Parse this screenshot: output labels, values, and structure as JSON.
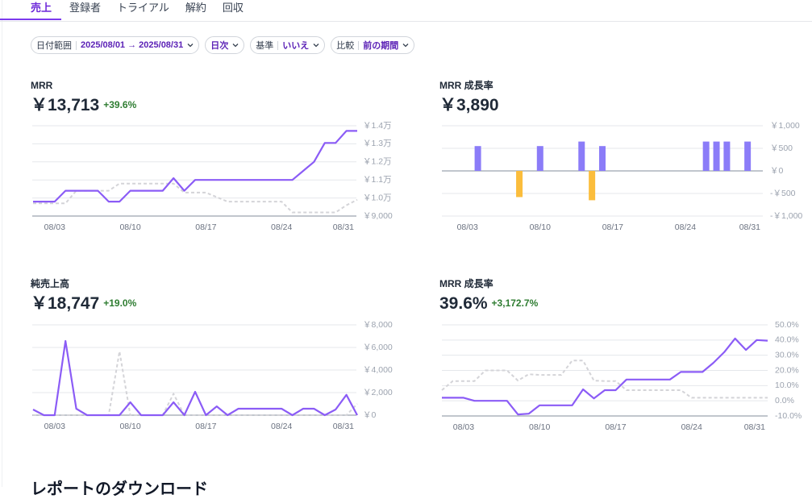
{
  "tabs": [
    "売上",
    "登録者",
    "トライアル",
    "解約",
    "回収"
  ],
  "active_tab": 0,
  "filters": [
    {
      "label": "日付範囲",
      "value": "2025/08/01 → 2025/08/31"
    },
    {
      "value": "日次"
    },
    {
      "label": "基準",
      "value": "いいえ"
    },
    {
      "label": "比較",
      "value": "前の期間"
    }
  ],
  "download_heading": "レポートのダウンロード",
  "chart_data": [
    {
      "type": "line",
      "title": "MRR",
      "value": "￥13,713",
      "change": "+39.6%",
      "categories": [
        null,
        null,
        "08/03",
        null,
        null,
        null,
        null,
        null,
        null,
        "08/10",
        null,
        null,
        null,
        null,
        null,
        null,
        "08/17",
        null,
        null,
        null,
        null,
        null,
        null,
        "08/24",
        null,
        null,
        null,
        null,
        null,
        null,
        "08/31"
      ],
      "series": [
        {
          "color": "#8b5cf6",
          "values": [
            9800,
            9800,
            9800,
            10400,
            10400,
            10400,
            10400,
            9800,
            9800,
            10400,
            10400,
            10400,
            10400,
            11100,
            10400,
            11000,
            11000,
            11000,
            11000,
            11000,
            11000,
            11000,
            11000,
            11000,
            11000,
            11500,
            12000,
            13050,
            13050,
            13713,
            13713
          ]
        },
        {
          "color": "#d4d4d8",
          "dashed": true,
          "values": [
            9700,
            9700,
            9700,
            9700,
            10400,
            10400,
            10400,
            10400,
            10800,
            10800,
            10800,
            10800,
            10800,
            10800,
            10300,
            10300,
            10300,
            10050,
            9800,
            9800,
            9800,
            9800,
            9800,
            9800,
            9200,
            9200,
            9200,
            9200,
            9200,
            9600,
            9900
          ]
        }
      ],
      "ylim": [
        9000,
        14000
      ],
      "yticks": [
        {
          "value": 9000,
          "label": "￥9,000"
        },
        {
          "value": 10000,
          "label": "￥1.0万"
        },
        {
          "value": 11000,
          "label": "￥1.1万"
        },
        {
          "value": 12000,
          "label": "￥1.2万"
        },
        {
          "value": 13000,
          "label": "￥1.3万"
        },
        {
          "value": 14000,
          "label": "￥1.4万"
        }
      ],
      "grid": true
    },
    {
      "type": "bar",
      "title": "MRR 成長率",
      "value": "￥3,890",
      "categories": [
        null,
        null,
        "08/03",
        null,
        null,
        null,
        null,
        null,
        null,
        "08/10",
        null,
        null,
        null,
        null,
        null,
        null,
        "08/17",
        null,
        null,
        null,
        null,
        null,
        null,
        "08/24",
        null,
        null,
        null,
        null,
        null,
        null,
        "08/31"
      ],
      "values": [
        0,
        0,
        0,
        550,
        0,
        0,
        0,
        -580,
        0,
        550,
        0,
        0,
        0,
        650,
        -650,
        550,
        0,
        0,
        0,
        0,
        0,
        0,
        0,
        0,
        0,
        650,
        650,
        650,
        0,
        650,
        0
      ],
      "color": "#8b7cf8",
      "negative_color": "#fbbd3c",
      "ylim": [
        -1000,
        1000
      ],
      "yticks": [
        {
          "value": -1000,
          "label": "-￥1,000"
        },
        {
          "value": -500,
          "label": "-￥500"
        },
        {
          "value": 0,
          "label": "￥0"
        },
        {
          "value": 500,
          "label": "￥500"
        },
        {
          "value": 1000,
          "label": "￥1,000"
        }
      ],
      "grid": true
    },
    {
      "type": "line",
      "title": "純売上高",
      "value": "￥18,747",
      "change": "+19.0%",
      "categories": [
        null,
        null,
        "08/03",
        null,
        null,
        null,
        null,
        null,
        null,
        "08/10",
        null,
        null,
        null,
        null,
        null,
        null,
        "08/17",
        null,
        null,
        null,
        null,
        null,
        null,
        "08/24",
        null,
        null,
        null,
        null,
        null,
        null,
        "08/31"
      ],
      "series": [
        {
          "color": "#8b5cf6",
          "values": [
            500,
            0,
            0,
            6570,
            570,
            0,
            0,
            0,
            0,
            1140,
            0,
            0,
            0,
            1140,
            0,
            2070,
            0,
            780,
            0,
            570,
            570,
            570,
            570,
            570,
            0,
            570,
            570,
            0,
            500,
            1800,
            0
          ]
        },
        {
          "color": "#d4d4d8",
          "dashed": true,
          "values": [
            0,
            0,
            0,
            0,
            0,
            0,
            0,
            0,
            5650,
            0,
            0,
            0,
            0,
            1900,
            0,
            0,
            0,
            0,
            0,
            0,
            0,
            0,
            0,
            0,
            0,
            0,
            0,
            0,
            0,
            0,
            1000
          ]
        }
      ],
      "ylim": [
        0,
        8000
      ],
      "yticks": [
        {
          "value": 0,
          "label": "￥0"
        },
        {
          "value": 2000,
          "label": "￥2,000"
        },
        {
          "value": 4000,
          "label": "￥4,000"
        },
        {
          "value": 6000,
          "label": "￥6,000"
        },
        {
          "value": 8000,
          "label": "￥8,000"
        }
      ],
      "grid": true
    },
    {
      "type": "line",
      "title": "MRR 成長率",
      "value": "39.6%",
      "change": "+3,172.7%",
      "categories": [
        null,
        null,
        "08/03",
        null,
        null,
        null,
        null,
        null,
        null,
        "08/10",
        null,
        null,
        null,
        null,
        null,
        null,
        "08/17",
        null,
        null,
        null,
        null,
        null,
        null,
        "08/24",
        null,
        null,
        null,
        null,
        null,
        null,
        "08/31"
      ],
      "series": [
        {
          "color": "#8b5cf6",
          "values": [
            2,
            2,
            2,
            0,
            0,
            0,
            0,
            -9,
            -8.5,
            -3,
            -3,
            -3,
            -3,
            7.5,
            1.6,
            7,
            7,
            14,
            14,
            14,
            14,
            14,
            19,
            19,
            19,
            25,
            32,
            41,
            33.5,
            40,
            39.6
          ]
        },
        {
          "color": "#d4d4d8",
          "dashed": true,
          "values": [
            7,
            13,
            13,
            13,
            20,
            20,
            20,
            13.3,
            17.5,
            17,
            17,
            17,
            26.5,
            26.5,
            13.3,
            13,
            13,
            7,
            7,
            7,
            7,
            7,
            7,
            2,
            2,
            2,
            2,
            2,
            2,
            2,
            2
          ]
        }
      ],
      "ylim": [
        -10,
        50
      ],
      "yticks": [
        {
          "value": -10,
          "label": "-10.0%"
        },
        {
          "value": 0,
          "label": "0.0%"
        },
        {
          "value": 10,
          "label": "10.0%"
        },
        {
          "value": 20,
          "label": "20.0%"
        },
        {
          "value": 30,
          "label": "30.0%"
        },
        {
          "value": 40,
          "label": "40.0%"
        },
        {
          "value": 50,
          "label": "50.0%"
        }
      ],
      "grid": true
    }
  ]
}
